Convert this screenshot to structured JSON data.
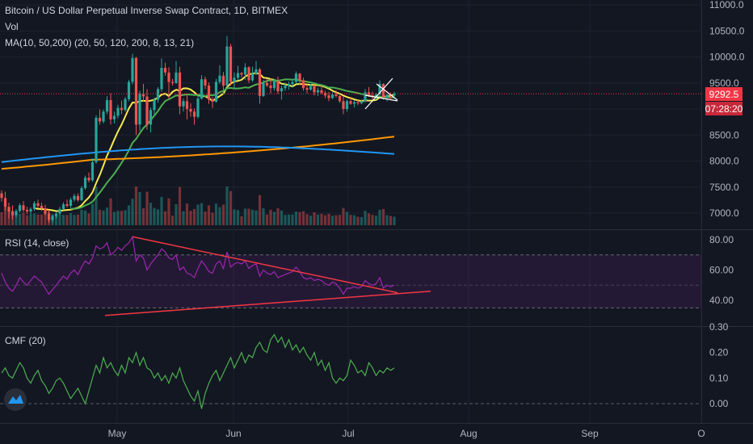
{
  "header": {
    "title": "Bitcoin / US Dollar Perpetual Inverse Swap Contract, 1D, BITMEX",
    "vol_label": "Vol",
    "ma_label": "MA(10, 50,200) (20, 50, 120, 200, 8, 13, 21)"
  },
  "price_badge": {
    "price": "9292.5",
    "countdown": "07:28:20"
  },
  "colors": {
    "background": "#131722",
    "grid": "#1e2230",
    "up": "#26a69a",
    "down": "#ef5350",
    "ma_yellow": "#f5e94e",
    "ma_green": "#4caf50",
    "ma_orange": "#ff9800",
    "ma_blue": "#2196f3",
    "rsi": "#9c27b0",
    "cmf": "#4caf50",
    "trendline": "#f23645",
    "badge_red": "#f23645"
  },
  "chart_data": [
    {
      "type": "candlestick",
      "title": "Bitcoin / US Dollar Perpetual Inverse Swap Contract, 1D, BITMEX",
      "ylim": [
        6800,
        11000
      ],
      "y_ticks": [
        "11000.0",
        "10500.0",
        "10000.0",
        "9500.0",
        "9000.0",
        "8500.0",
        "8000.0",
        "7500.0",
        "7000.0"
      ],
      "x_ticks": [
        "May",
        "Jun",
        "Jul",
        "Aug",
        "Sep",
        "O"
      ],
      "last_price": 9292.5,
      "ohlc": [
        [
          7380,
          7440,
          7220,
          7290
        ],
        [
          7290,
          7410,
          7050,
          7120
        ],
        [
          7120,
          7200,
          6900,
          7030
        ],
        [
          7030,
          7150,
          6880,
          6960
        ],
        [
          6960,
          7080,
          6920,
          7040
        ],
        [
          7040,
          7190,
          7010,
          7150
        ],
        [
          7150,
          7230,
          7020,
          7060
        ],
        [
          7060,
          7120,
          6980,
          7030
        ],
        [
          7030,
          7110,
          6960,
          7080
        ],
        [
          7080,
          7230,
          7040,
          7190
        ],
        [
          7190,
          7260,
          7100,
          7140
        ],
        [
          7140,
          7200,
          7040,
          7090
        ],
        [
          7090,
          7160,
          6960,
          6990
        ],
        [
          6990,
          7060,
          6820,
          6870
        ],
        [
          6870,
          6980,
          6820,
          6940
        ],
        [
          6940,
          7030,
          6900,
          6990
        ],
        [
          6990,
          7120,
          6960,
          7080
        ],
        [
          7080,
          7210,
          7060,
          7170
        ],
        [
          7170,
          7260,
          7110,
          7140
        ],
        [
          7140,
          7300,
          7100,
          7260
        ],
        [
          7260,
          7370,
          7220,
          7330
        ],
        [
          7330,
          7380,
          7220,
          7250
        ],
        [
          7250,
          7520,
          7230,
          7480
        ],
        [
          7480,
          7720,
          7450,
          7680
        ],
        [
          7680,
          7780,
          7590,
          7630
        ],
        [
          7630,
          8050,
          7600,
          7980
        ],
        [
          7980,
          8880,
          7950,
          8830
        ],
        [
          8830,
          8990,
          8700,
          8760
        ],
        [
          8760,
          8990,
          8720,
          8950
        ],
        [
          8950,
          9250,
          8900,
          9170
        ],
        [
          9170,
          9300,
          8700,
          8800
        ],
        [
          8800,
          8950,
          8720,
          8870
        ],
        [
          8870,
          9080,
          8820,
          9020
        ],
        [
          9020,
          9160,
          8900,
          8980
        ],
        [
          8980,
          9230,
          8950,
          9190
        ],
        [
          9190,
          9560,
          9150,
          9520
        ],
        [
          9520,
          10060,
          9470,
          9980
        ],
        [
          9980,
          10000,
          8500,
          8700
        ],
        [
          8700,
          9350,
          8580,
          9290
        ],
        [
          9290,
          9480,
          9150,
          9240
        ],
        [
          9240,
          9380,
          8600,
          8700
        ],
        [
          8700,
          9030,
          8550,
          8980
        ],
        [
          8980,
          9220,
          8880,
          9180
        ],
        [
          9180,
          9420,
          9120,
          9380
        ],
        [
          9380,
          9970,
          9330,
          9790
        ],
        [
          9790,
          9890,
          9640,
          9700
        ],
        [
          9700,
          9800,
          9200,
          9520
        ],
        [
          9520,
          9580,
          9450,
          9500
        ],
        [
          9500,
          9920,
          9480,
          9700
        ],
        [
          9700,
          9810,
          8900,
          9050
        ],
        [
          9050,
          9200,
          8950,
          9150
        ],
        [
          9150,
          9260,
          8800,
          9000
        ],
        [
          9000,
          9110,
          8850,
          8950
        ],
        [
          8950,
          9010,
          8700,
          8850
        ],
        [
          8850,
          9250,
          8820,
          9200
        ],
        [
          9200,
          9650,
          9180,
          9570
        ],
        [
          9570,
          9620,
          9380,
          9450
        ],
        [
          9450,
          9510,
          9100,
          9180
        ],
        [
          9180,
          9230,
          9020,
          9140
        ],
        [
          9140,
          9580,
          9120,
          9520
        ],
        [
          9520,
          9840,
          9480,
          9640
        ],
        [
          9640,
          9710,
          9280,
          9450
        ],
        [
          9450,
          10400,
          9420,
          10200
        ],
        [
          10200,
          10250,
          9450,
          9520
        ],
        [
          9520,
          9700,
          9400,
          9600
        ],
        [
          9600,
          9830,
          9550,
          9690
        ],
        [
          9690,
          9710,
          9600,
          9660
        ],
        [
          9660,
          9880,
          9560,
          9800
        ],
        [
          9800,
          9820,
          9500,
          9550
        ],
        [
          9550,
          9810,
          9520,
          9680
        ],
        [
          9680,
          9920,
          9650,
          9760
        ],
        [
          9760,
          9790,
          9100,
          9250
        ],
        [
          9250,
          9560,
          9230,
          9500
        ],
        [
          9500,
          9580,
          9420,
          9450
        ],
        [
          9450,
          9590,
          9300,
          9400
        ],
        [
          9400,
          9580,
          9350,
          9530
        ],
        [
          9530,
          9620,
          9290,
          9340
        ],
        [
          9340,
          9450,
          9180,
          9400
        ],
        [
          9400,
          9500,
          9350,
          9450
        ],
        [
          9450,
          9530,
          9370,
          9480
        ],
        [
          9480,
          9580,
          9420,
          9520
        ],
        [
          9520,
          9720,
          9480,
          9680
        ],
        [
          9680,
          9690,
          9460,
          9550
        ],
        [
          9550,
          9600,
          9350,
          9400
        ],
        [
          9400,
          9470,
          9300,
          9370
        ],
        [
          9370,
          9480,
          9350,
          9440
        ],
        [
          9440,
          9480,
          9260,
          9320
        ],
        [
          9320,
          9410,
          9250,
          9360
        ],
        [
          9360,
          9460,
          9280,
          9310
        ],
        [
          9310,
          9350,
          9210,
          9260
        ],
        [
          9260,
          9330,
          9150,
          9210
        ],
        [
          9210,
          9320,
          9190,
          9280
        ],
        [
          9280,
          9360,
          9220,
          9250
        ],
        [
          9250,
          9270,
          9120,
          9150
        ],
        [
          9150,
          9240,
          8900,
          9000
        ],
        [
          9000,
          9180,
          8950,
          9150
        ],
        [
          9150,
          9230,
          9080,
          9100
        ],
        [
          9100,
          9170,
          9030,
          9130
        ],
        [
          9130,
          9170,
          9070,
          9110
        ],
        [
          9110,
          9180,
          9090,
          9150
        ],
        [
          9150,
          9380,
          9120,
          9320
        ],
        [
          9320,
          9420,
          9230,
          9260
        ],
        [
          9260,
          9330,
          9180,
          9240
        ],
        [
          9240,
          9310,
          9180,
          9280
        ],
        [
          9280,
          9550,
          9260,
          9480
        ],
        [
          9480,
          9490,
          9180,
          9220
        ],
        [
          9220,
          9290,
          9150,
          9270
        ],
        [
          9270,
          9320,
          9200,
          9260
        ],
        [
          9260,
          9330,
          9230,
          9290
        ]
      ]
    },
    {
      "type": "line",
      "title": "RSI (14, close)",
      "ylim": [
        30,
        85
      ],
      "y_ticks": [
        "80.00",
        "60.00",
        "40.00"
      ],
      "bands": [
        35,
        50,
        70
      ],
      "values": [
        58,
        52,
        48,
        46,
        50,
        55,
        52,
        50,
        53,
        56,
        54,
        52,
        48,
        44,
        47,
        50,
        53,
        56,
        54,
        58,
        60,
        57,
        62,
        66,
        64,
        68,
        76,
        74,
        75,
        78,
        70,
        72,
        75,
        73,
        76,
        78,
        82,
        66,
        70,
        68,
        60,
        64,
        67,
        70,
        74,
        72,
        68,
        67,
        70,
        60,
        62,
        58,
        57,
        55,
        61,
        66,
        63,
        59,
        58,
        64,
        66,
        61,
        72,
        62,
        64,
        65,
        64,
        66,
        61,
        63,
        64,
        56,
        60,
        58,
        57,
        59,
        55,
        56,
        57,
        58,
        59,
        62,
        59,
        55,
        54,
        55,
        53,
        54,
        53,
        51,
        50,
        52,
        51,
        48,
        44,
        48,
        48,
        49,
        48,
        49,
        53,
        51,
        50,
        51,
        55,
        48,
        50,
        49,
        50
      ],
      "trendline_labels": []
    },
    {
      "type": "line",
      "title": "CMF (20)",
      "ylim": [
        -0.05,
        0.3
      ],
      "y_ticks": [
        "0.30",
        "0.20",
        "0.10",
        "0.00"
      ],
      "values": [
        0.12,
        0.14,
        0.11,
        0.1,
        0.13,
        0.16,
        0.14,
        0.1,
        0.08,
        0.11,
        0.13,
        0.09,
        0.07,
        0.04,
        0.06,
        0.09,
        0.1,
        0.08,
        0.05,
        0.02,
        0.04,
        0.06,
        0.03,
        0.0,
        0.05,
        0.1,
        0.15,
        0.12,
        0.18,
        0.14,
        0.16,
        0.13,
        0.11,
        0.15,
        0.12,
        0.18,
        0.16,
        0.2,
        0.15,
        0.18,
        0.14,
        0.13,
        0.1,
        0.12,
        0.09,
        0.11,
        0.08,
        0.12,
        0.1,
        0.14,
        0.09,
        0.06,
        0.03,
        0.01,
        0.05,
        -0.02,
        0.04,
        0.08,
        0.11,
        0.13,
        0.09,
        0.12,
        0.15,
        0.18,
        0.14,
        0.17,
        0.2,
        0.16,
        0.19,
        0.18,
        0.22,
        0.24,
        0.21,
        0.2,
        0.25,
        0.27,
        0.24,
        0.26,
        0.22,
        0.25,
        0.21,
        0.23,
        0.2,
        0.22,
        0.19,
        0.17,
        0.2,
        0.15,
        0.17,
        0.13,
        0.16,
        0.1,
        0.08,
        0.1,
        0.09,
        0.11,
        0.17,
        0.15,
        0.12,
        0.13,
        0.11,
        0.16,
        0.14,
        0.11,
        0.13,
        0.12,
        0.14,
        0.13,
        0.14
      ]
    }
  ]
}
